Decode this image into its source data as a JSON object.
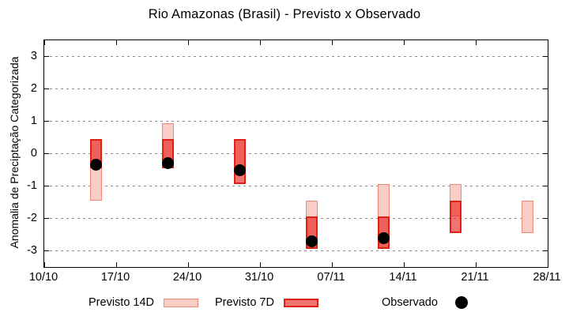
{
  "title": "Rio Amazonas (Brasil) - Previsto x Observado",
  "chart_data": {
    "type": "bar",
    "subtype": "floating-range-bars-with-scatter-overlay",
    "title": "Rio Amazonas (Brasil) - Previsto x Observado",
    "xlabel": "",
    "ylabel": "Anomalia de Preciptação Categorizada",
    "ylim": [
      -3.5,
      3.5
    ],
    "y_ticks": [
      -3,
      -2,
      -1,
      0,
      1,
      2,
      3
    ],
    "x_range_days": [
      0,
      49
    ],
    "x_ticks": [
      {
        "day": 0,
        "label": "10/10"
      },
      {
        "day": 7,
        "label": "17/10"
      },
      {
        "day": 14,
        "label": "24/10"
      },
      {
        "day": 21,
        "label": "31/10"
      },
      {
        "day": 28,
        "label": "07/11"
      },
      {
        "day": 35,
        "label": "14/11"
      },
      {
        "day": 42,
        "label": "21/11"
      },
      {
        "day": 49,
        "label": "28/11"
      }
    ],
    "grid": "horizontal-dashed",
    "grid_color": "#8a8a8a",
    "axis_color": "#000000",
    "legend_position": "bottom-center",
    "series": [
      {
        "name": "Previsto 14D",
        "kind": "range",
        "fill": "#f9cdc6",
        "border": "#f08878",
        "points": [
          {
            "day": 5,
            "low": -1.45,
            "high": 0.45
          },
          {
            "day": 12,
            "low": -0.45,
            "high": 0.95
          },
          {
            "day": 19,
            "low": -0.45,
            "high": 0.45
          },
          {
            "day": 26,
            "low": -2.95,
            "high": -1.45
          },
          {
            "day": 33,
            "low": -2.95,
            "high": -0.95
          },
          {
            "day": 40,
            "low": -1.95,
            "high": -0.95
          },
          {
            "day": 47,
            "low": -2.45,
            "high": -1.45
          }
        ]
      },
      {
        "name": "Previsto 7D",
        "kind": "range",
        "fill": "rgba(230,25,18,0.6)",
        "border": "#e01f15",
        "points": [
          {
            "day": 5,
            "low": -0.45,
            "high": 0.45
          },
          {
            "day": 12,
            "low": -0.45,
            "high": 0.45
          },
          {
            "day": 19,
            "low": -0.95,
            "high": 0.45
          },
          {
            "day": 26,
            "low": -2.95,
            "high": -1.95
          },
          {
            "day": 33,
            "low": -2.95,
            "high": -1.95
          },
          {
            "day": 40,
            "low": -2.45,
            "high": -1.45
          }
        ]
      },
      {
        "name": "Observado",
        "kind": "scatter",
        "color": "#000000",
        "points": [
          {
            "day": 5,
            "value": -0.35
          },
          {
            "day": 12,
            "value": -0.3
          },
          {
            "day": 19,
            "value": -0.5
          },
          {
            "day": 26,
            "value": -2.7
          },
          {
            "day": 33,
            "value": -2.6
          }
        ]
      }
    ]
  },
  "legend": {
    "items": [
      {
        "label": "Previsto 14D",
        "swatch": "range-box-light"
      },
      {
        "label": "Previsto 7D",
        "swatch": "range-box-red"
      },
      {
        "label": "Observado",
        "swatch": "black-dot"
      }
    ]
  }
}
